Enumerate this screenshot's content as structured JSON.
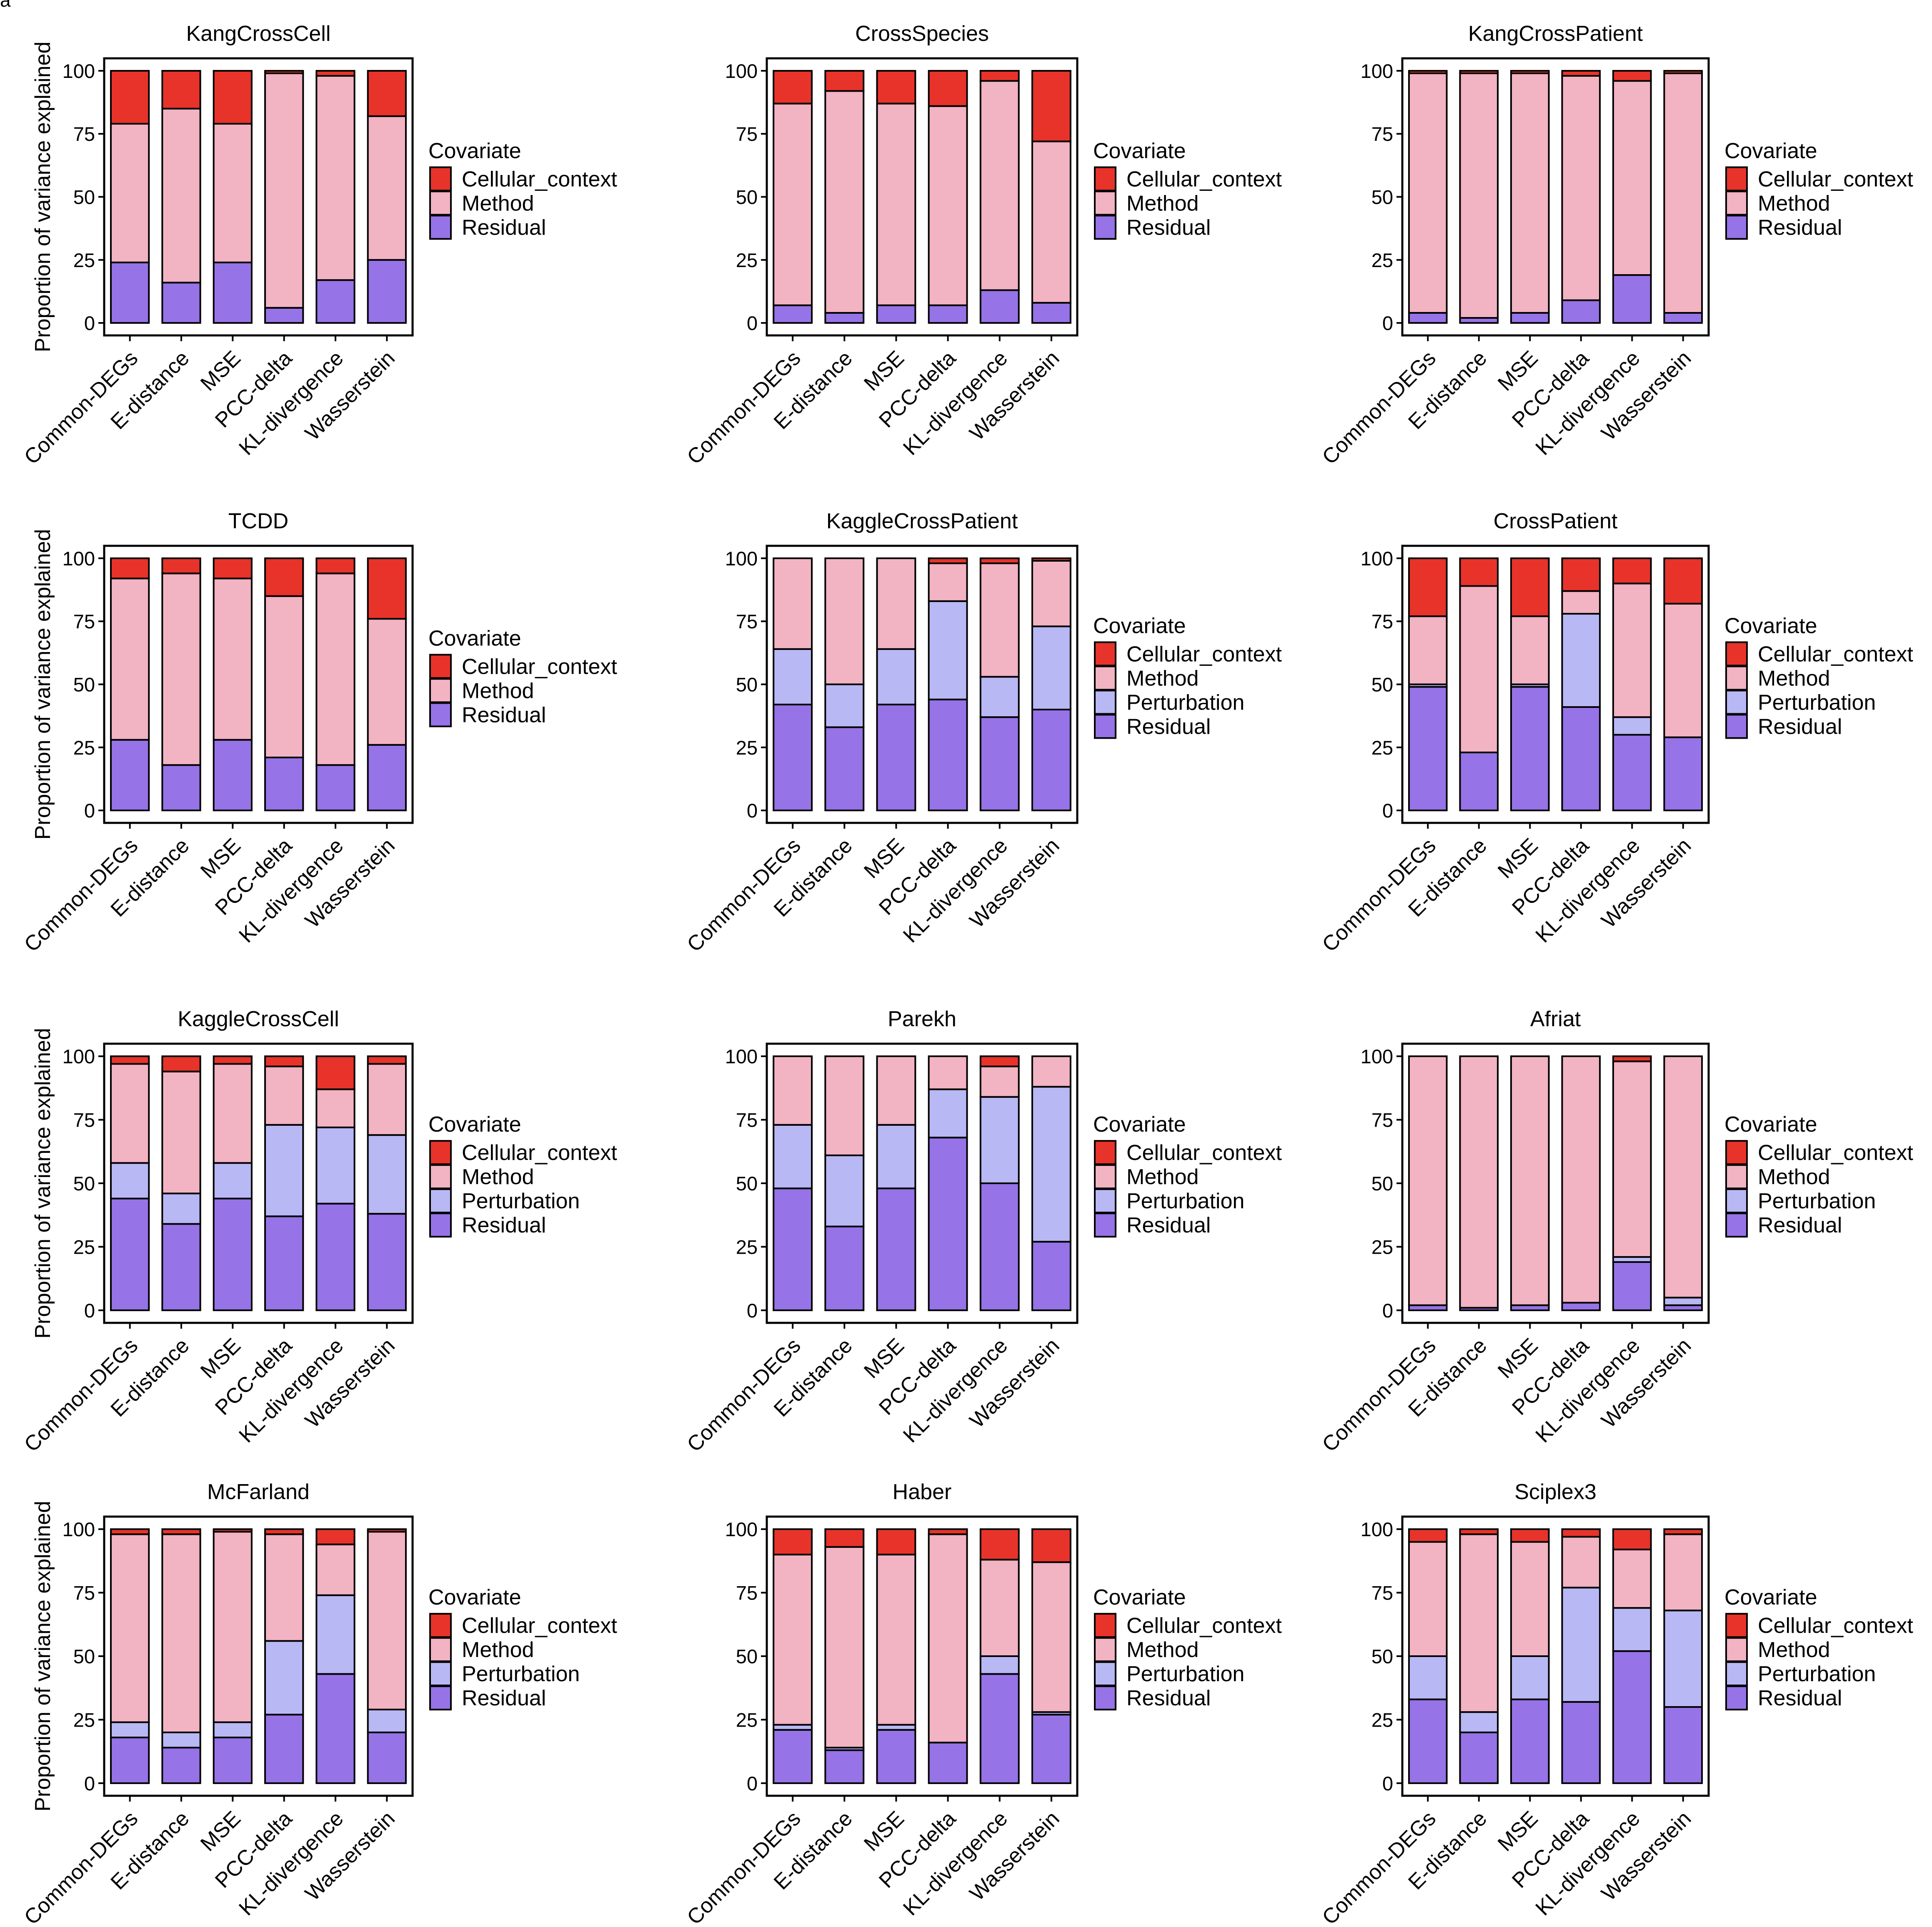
{
  "figure_label": "a",
  "colors": {
    "Cellular_context": "#e8332a",
    "Method": "#f2b3c3",
    "Perturbation": "#b8b8f5",
    "Residual": "#9673e6"
  },
  "chart_data": [
    {
      "type": "bar",
      "stacked": true,
      "title": "KangCrossCell",
      "xlabel": "",
      "ylabel": "Proportion of variance explained",
      "ylim": [
        0,
        100
      ],
      "yticks": [
        "0",
        "25",
        "50",
        "75",
        "100"
      ],
      "legend_title": "Covariate",
      "categories": [
        "Common-DEGs",
        "E-distance",
        "MSE",
        "PCC-delta",
        "KL-divergence",
        "Wasserstein"
      ],
      "series": [
        {
          "name": "Residual",
          "values": [
            24,
            16,
            24,
            6,
            17,
            25
          ]
        },
        {
          "name": "Method",
          "values": [
            55,
            69,
            55,
            93,
            81,
            57
          ]
        },
        {
          "name": "Cellular_context",
          "values": [
            21,
            15,
            21,
            1,
            2,
            18
          ]
        }
      ]
    },
    {
      "type": "bar",
      "stacked": true,
      "title": "CrossSpecies",
      "xlabel": "",
      "ylabel": "",
      "ylim": [
        0,
        100
      ],
      "yticks": [
        "0",
        "25",
        "50",
        "75",
        "100"
      ],
      "legend_title": "Covariate",
      "categories": [
        "Common-DEGs",
        "E-distance",
        "MSE",
        "PCC-delta",
        "KL-divergence",
        "Wasserstein"
      ],
      "series": [
        {
          "name": "Residual",
          "values": [
            7,
            4,
            7,
            7,
            13,
            8
          ]
        },
        {
          "name": "Method",
          "values": [
            80,
            88,
            80,
            79,
            83,
            64
          ]
        },
        {
          "name": "Cellular_context",
          "values": [
            13,
            8,
            13,
            14,
            4,
            28
          ]
        }
      ]
    },
    {
      "type": "bar",
      "stacked": true,
      "title": "KangCrossPatient",
      "xlabel": "",
      "ylabel": "",
      "ylim": [
        0,
        100
      ],
      "yticks": [
        "0",
        "25",
        "50",
        "75",
        "100"
      ],
      "legend_title": "Covariate",
      "categories": [
        "Common-DEGs",
        "E-distance",
        "MSE",
        "PCC-delta",
        "KL-divergence",
        "Wasserstein"
      ],
      "series": [
        {
          "name": "Residual",
          "values": [
            4,
            2,
            4,
            9,
            19,
            4
          ]
        },
        {
          "name": "Method",
          "values": [
            95,
            97,
            95,
            89,
            77,
            95
          ]
        },
        {
          "name": "Cellular_context",
          "values": [
            1,
            1,
            1,
            2,
            4,
            1
          ]
        }
      ]
    },
    {
      "type": "bar",
      "stacked": true,
      "title": "TCDD",
      "xlabel": "",
      "ylabel": "Proportion of variance explained",
      "ylim": [
        0,
        100
      ],
      "yticks": [
        "0",
        "25",
        "50",
        "75",
        "100"
      ],
      "legend_title": "Covariate",
      "categories": [
        "Common-DEGs",
        "E-distance",
        "MSE",
        "PCC-delta",
        "KL-divergence",
        "Wasserstein"
      ],
      "series": [
        {
          "name": "Residual",
          "values": [
            28,
            18,
            28,
            21,
            18,
            26
          ]
        },
        {
          "name": "Method",
          "values": [
            64,
            76,
            64,
            64,
            76,
            50
          ]
        },
        {
          "name": "Cellular_context",
          "values": [
            8,
            6,
            8,
            15,
            6,
            24
          ]
        }
      ]
    },
    {
      "type": "bar",
      "stacked": true,
      "title": "KaggleCrossPatient",
      "xlabel": "",
      "ylabel": "",
      "ylim": [
        0,
        100
      ],
      "yticks": [
        "0",
        "25",
        "50",
        "75",
        "100"
      ],
      "legend_title": "Covariate",
      "categories": [
        "Common-DEGs",
        "E-distance",
        "MSE",
        "PCC-delta",
        "KL-divergence",
        "Wasserstein"
      ],
      "series": [
        {
          "name": "Residual",
          "values": [
            42,
            33,
            42,
            44,
            37,
            40
          ]
        },
        {
          "name": "Perturbation",
          "values": [
            22,
            17,
            22,
            39,
            16,
            33
          ]
        },
        {
          "name": "Method",
          "values": [
            36,
            50,
            36,
            15,
            45,
            26
          ]
        },
        {
          "name": "Cellular_context",
          "values": [
            0,
            0,
            0,
            2,
            2,
            1
          ]
        }
      ]
    },
    {
      "type": "bar",
      "stacked": true,
      "title": "CrossPatient",
      "xlabel": "",
      "ylabel": "",
      "ylim": [
        0,
        100
      ],
      "yticks": [
        "0",
        "25",
        "50",
        "75",
        "100"
      ],
      "legend_title": "Covariate",
      "categories": [
        "Common-DEGs",
        "E-distance",
        "MSE",
        "PCC-delta",
        "KL-divergence",
        "Wasserstein"
      ],
      "series": [
        {
          "name": "Residual",
          "values": [
            49,
            23,
            49,
            41,
            30,
            29
          ]
        },
        {
          "name": "Perturbation",
          "values": [
            1,
            0,
            1,
            37,
            7,
            0
          ]
        },
        {
          "name": "Method",
          "values": [
            27,
            66,
            27,
            9,
            53,
            53
          ]
        },
        {
          "name": "Cellular_context",
          "values": [
            23,
            11,
            23,
            13,
            10,
            18
          ]
        }
      ]
    },
    {
      "type": "bar",
      "stacked": true,
      "title": "KaggleCrossCell",
      "xlabel": "",
      "ylabel": "Proportion of variance explained",
      "ylim": [
        0,
        100
      ],
      "yticks": [
        "0",
        "25",
        "50",
        "75",
        "100"
      ],
      "legend_title": "Covariate",
      "categories": [
        "Common-DEGs",
        "E-distance",
        "MSE",
        "PCC-delta",
        "KL-divergence",
        "Wasserstein"
      ],
      "series": [
        {
          "name": "Residual",
          "values": [
            44,
            34,
            44,
            37,
            42,
            38
          ]
        },
        {
          "name": "Perturbation",
          "values": [
            14,
            12,
            14,
            36,
            30,
            31
          ]
        },
        {
          "name": "Method",
          "values": [
            39,
            48,
            39,
            23,
            15,
            28
          ]
        },
        {
          "name": "Cellular_context",
          "values": [
            3,
            6,
            3,
            4,
            13,
            3
          ]
        }
      ]
    },
    {
      "type": "bar",
      "stacked": true,
      "title": "Parekh",
      "xlabel": "",
      "ylabel": "",
      "ylim": [
        0,
        100
      ],
      "yticks": [
        "0",
        "25",
        "50",
        "75",
        "100"
      ],
      "legend_title": "Covariate",
      "categories": [
        "Common-DEGs",
        "E-distance",
        "MSE",
        "PCC-delta",
        "KL-divergence",
        "Wasserstein"
      ],
      "series": [
        {
          "name": "Residual",
          "values": [
            48,
            33,
            48,
            68,
            50,
            27
          ]
        },
        {
          "name": "Perturbation",
          "values": [
            25,
            28,
            25,
            19,
            34,
            61
          ]
        },
        {
          "name": "Method",
          "values": [
            27,
            39,
            27,
            13,
            12,
            12
          ]
        },
        {
          "name": "Cellular_context",
          "values": [
            0,
            0,
            0,
            0,
            4,
            0
          ]
        }
      ]
    },
    {
      "type": "bar",
      "stacked": true,
      "title": "Afriat",
      "xlabel": "",
      "ylabel": "",
      "ylim": [
        0,
        100
      ],
      "yticks": [
        "0",
        "25",
        "50",
        "75",
        "100"
      ],
      "legend_title": "Covariate",
      "categories": [
        "Common-DEGs",
        "E-distance",
        "MSE",
        "PCC-delta",
        "KL-divergence",
        "Wasserstein"
      ],
      "series": [
        {
          "name": "Residual",
          "values": [
            2,
            1,
            2,
            3,
            19,
            2
          ]
        },
        {
          "name": "Perturbation",
          "values": [
            0,
            0,
            0,
            0,
            2,
            3
          ]
        },
        {
          "name": "Method",
          "values": [
            98,
            99,
            98,
            97,
            77,
            95
          ]
        },
        {
          "name": "Cellular_context",
          "values": [
            0,
            0,
            0,
            0,
            2,
            0
          ]
        }
      ]
    },
    {
      "type": "bar",
      "stacked": true,
      "title": "McFarland",
      "xlabel": "",
      "ylabel": "Proportion of variance explained",
      "ylim": [
        0,
        100
      ],
      "yticks": [
        "0",
        "25",
        "50",
        "75",
        "100"
      ],
      "legend_title": "Covariate",
      "categories": [
        "Common-DEGs",
        "E-distance",
        "MSE",
        "PCC-delta",
        "KL-divergence",
        "Wasserstein"
      ],
      "series": [
        {
          "name": "Residual",
          "values": [
            18,
            14,
            18,
            27,
            43,
            20
          ]
        },
        {
          "name": "Perturbation",
          "values": [
            6,
            6,
            6,
            29,
            31,
            9
          ]
        },
        {
          "name": "Method",
          "values": [
            74,
            78,
            75,
            42,
            20,
            70
          ]
        },
        {
          "name": "Cellular_context",
          "values": [
            2,
            2,
            1,
            2,
            6,
            1
          ]
        }
      ]
    },
    {
      "type": "bar",
      "stacked": true,
      "title": "Haber",
      "xlabel": "",
      "ylabel": "",
      "ylim": [
        0,
        100
      ],
      "yticks": [
        "0",
        "25",
        "50",
        "75",
        "100"
      ],
      "legend_title": "Covariate",
      "categories": [
        "Common-DEGs",
        "E-distance",
        "MSE",
        "PCC-delta",
        "KL-divergence",
        "Wasserstein"
      ],
      "series": [
        {
          "name": "Residual",
          "values": [
            21,
            13,
            21,
            16,
            43,
            27
          ]
        },
        {
          "name": "Perturbation",
          "values": [
            2,
            1,
            2,
            0,
            7,
            1
          ]
        },
        {
          "name": "Method",
          "values": [
            67,
            79,
            67,
            82,
            38,
            59
          ]
        },
        {
          "name": "Cellular_context",
          "values": [
            10,
            7,
            10,
            2,
            12,
            13
          ]
        }
      ]
    },
    {
      "type": "bar",
      "stacked": true,
      "title": "Sciplex3",
      "xlabel": "",
      "ylabel": "",
      "ylim": [
        0,
        100
      ],
      "yticks": [
        "0",
        "25",
        "50",
        "75",
        "100"
      ],
      "legend_title": "Covariate",
      "categories": [
        "Common-DEGs",
        "E-distance",
        "MSE",
        "PCC-delta",
        "KL-divergence",
        "Wasserstein"
      ],
      "series": [
        {
          "name": "Residual",
          "values": [
            33,
            20,
            33,
            32,
            52,
            30
          ]
        },
        {
          "name": "Perturbation",
          "values": [
            17,
            8,
            17,
            45,
            17,
            38
          ]
        },
        {
          "name": "Method",
          "values": [
            45,
            70,
            45,
            20,
            23,
            30
          ]
        },
        {
          "name": "Cellular_context",
          "values": [
            5,
            2,
            5,
            3,
            8,
            2
          ]
        }
      ]
    }
  ]
}
